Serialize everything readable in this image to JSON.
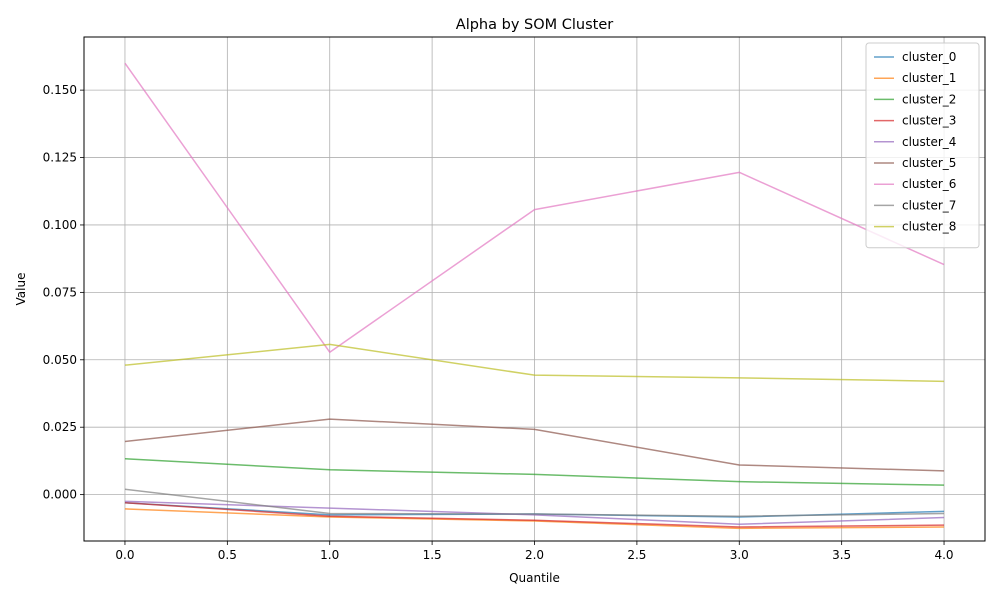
{
  "chart_data": {
    "type": "line",
    "title": "Alpha by SOM Cluster",
    "xlabel": "Quantile",
    "ylabel": "Value",
    "xlim": [
      -0.2,
      4.2
    ],
    "ylim": [
      -0.0172,
      0.1697
    ],
    "xticks": [
      0.0,
      0.5,
      1.0,
      1.5,
      2.0,
      2.5,
      3.0,
      3.5,
      4.0
    ],
    "xtick_labels": [
      "0.0",
      "0.5",
      "1.0",
      "1.5",
      "2.0",
      "2.5",
      "3.0",
      "3.5",
      "4.0"
    ],
    "yticks": [
      0.0,
      0.025,
      0.05,
      0.075,
      0.1,
      0.125,
      0.15
    ],
    "ytick_labels": [
      "0.000",
      "0.025",
      "0.050",
      "0.075",
      "0.100",
      "0.125",
      "0.150"
    ],
    "grid": true,
    "legend_position": "top-right",
    "x": [
      0,
      1,
      2,
      3,
      4
    ],
    "series": [
      {
        "name": "cluster_0",
        "color": "#1f77b4",
        "values": [
          -0.003,
          -0.0075,
          -0.0072,
          -0.0083,
          -0.0062
        ]
      },
      {
        "name": "cluster_1",
        "color": "#ff7f0e",
        "values": [
          -0.0053,
          -0.0083,
          -0.0098,
          -0.0125,
          -0.012
        ]
      },
      {
        "name": "cluster_2",
        "color": "#2ca02c",
        "values": [
          0.0133,
          0.0092,
          0.0075,
          0.0048,
          0.0035
        ]
      },
      {
        "name": "cluster_3",
        "color": "#d62728",
        "values": [
          -0.003,
          -0.008,
          -0.0095,
          -0.012,
          -0.0113
        ]
      },
      {
        "name": "cluster_4",
        "color": "#9467bd",
        "values": [
          -0.0025,
          -0.005,
          -0.0075,
          -0.011,
          -0.0085
        ]
      },
      {
        "name": "cluster_5",
        "color": "#8c564b",
        "values": [
          0.0197,
          0.028,
          0.0242,
          0.011,
          0.0088
        ]
      },
      {
        "name": "cluster_6",
        "color": "#e377c2",
        "values": [
          0.16,
          0.0528,
          0.1057,
          0.1195,
          0.0853
        ]
      },
      {
        "name": "cluster_7",
        "color": "#7f7f7f",
        "values": [
          0.002,
          -0.007,
          -0.0072,
          -0.008,
          -0.007
        ]
      },
      {
        "name": "cluster_8",
        "color": "#bcbd22",
        "values": [
          0.048,
          0.0557,
          0.0443,
          0.0433,
          0.042
        ]
      }
    ]
  }
}
